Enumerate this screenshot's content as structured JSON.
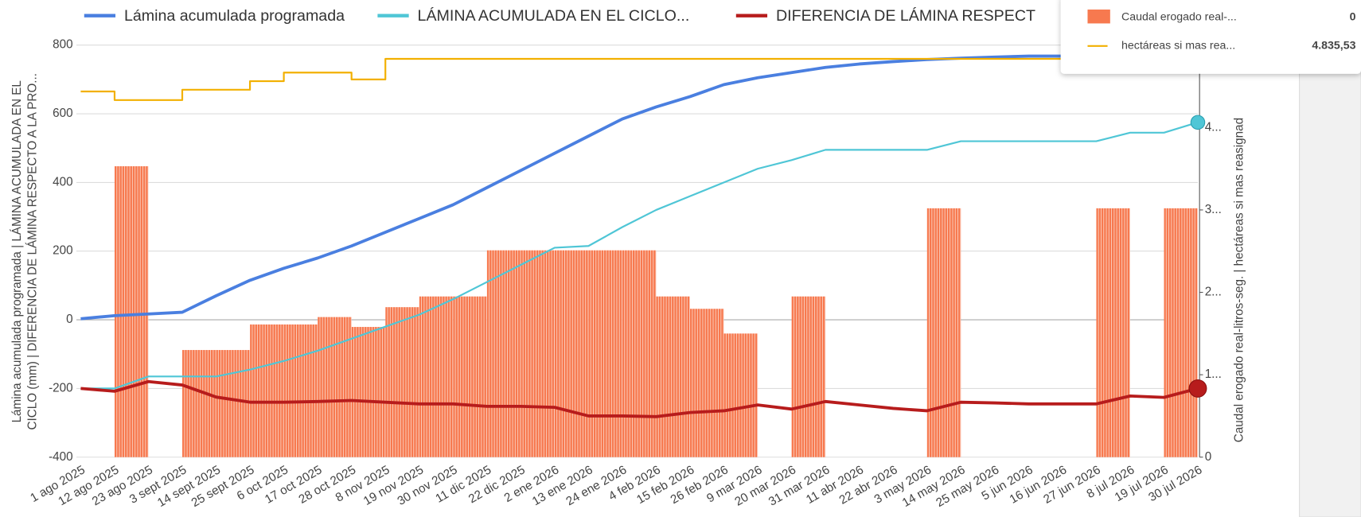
{
  "chart_data": {
    "type": "combo",
    "y_label": [
      "Lámina acumulada programada | LÁMINA ACUMULADA EN EL",
      "CICLO (mm) | DIFERENCIA DE LÁMINA RESPECTO A LA PRO..."
    ],
    "y2_label": "Caudal erogado real-litros-seg. | hectáreas si mas reasignad",
    "categories": [
      "1 ago 2025",
      "12 ago 2025",
      "23 ago 2025",
      "3 sept 2025",
      "14 sept 2025",
      "25 sept 2025",
      "6 oct 2025",
      "17 oct 2025",
      "28 oct 2025",
      "8 nov 2025",
      "19 nov 2025",
      "30 nov 2025",
      "11 dic 2025",
      "22 dic 2025",
      "2 ene 2026",
      "13 ene 2026",
      "24 ene 2026",
      "4 feb 2026",
      "15 feb 2026",
      "26 feb 2026",
      "9 mar 2026",
      "20 mar 2026",
      "31 mar 2026",
      "11 abr 2026",
      "22 abr 2026",
      "3 may 2026",
      "14 may 2026",
      "25 may 2026",
      "5 jun 2026",
      "16 jun 2026",
      "27 jun 2026",
      "8 jul 2026",
      "19 jul 2026",
      "30 jul 2026"
    ],
    "ylim": [
      -400,
      800
    ],
    "yticks": [
      -400,
      -200,
      0,
      200,
      400,
      600,
      800
    ],
    "y2lim": [
      0,
      5
    ],
    "y2ticks": [
      0,
      {
        "value": 1,
        "label": "1..."
      },
      {
        "value": 2,
        "label": "2..."
      },
      {
        "value": 3,
        "label": "3..."
      },
      {
        "value": 4,
        "label": "4..."
      }
    ],
    "grid": true,
    "series": [
      {
        "name": "Lámina acumulada programada",
        "kind": "line",
        "color": "#4a7fe0",
        "values": [
          3,
          12,
          17,
          22,
          70,
          115,
          150,
          180,
          215,
          255,
          295,
          335,
          385,
          435,
          485,
          535,
          585,
          620,
          650,
          685,
          705,
          720,
          735,
          745,
          752,
          758,
          762,
          765,
          768,
          768,
          768,
          768,
          770,
          770
        ]
      },
      {
        "name": "LÁMINA ACUMULADA EN EL CICLO...",
        "kind": "line",
        "color": "#4fc6d6",
        "end_marker": true,
        "values": [
          -200,
          -200,
          -165,
          -165,
          -165,
          -145,
          -120,
          -90,
          -55,
          -20,
          15,
          60,
          110,
          160,
          210,
          215,
          270,
          320,
          360,
          400,
          440,
          465,
          495,
          495,
          495,
          495,
          520,
          520,
          520,
          520,
          520,
          545,
          545,
          575
        ]
      },
      {
        "name": "DIFERENCIA DE LÁMINA RESPECT",
        "kind": "line",
        "color": "#b71c1c",
        "end_marker": true,
        "values": [
          -200,
          -208,
          -180,
          -190,
          -225,
          -240,
          -240,
          -238,
          -235,
          -240,
          -245,
          -245,
          -252,
          -252,
          -255,
          -280,
          -280,
          -282,
          -270,
          -265,
          -248,
          -260,
          -238,
          -248,
          -258,
          -265,
          -240,
          -242,
          -245,
          -245,
          -245,
          -222,
          -226,
          -200
        ]
      },
      {
        "name": "hectáreas si mas rea...",
        "kind": "step",
        "color": "#f2b000",
        "values": [
          665,
          640,
          640,
          670,
          670,
          695,
          720,
          720,
          700,
          760,
          760,
          760,
          760,
          760,
          760,
          760,
          760,
          760,
          760,
          760,
          760,
          760,
          760,
          760,
          760,
          760,
          760,
          760,
          760,
          760,
          760,
          760,
          760,
          760
        ]
      },
      {
        "name": "Caudal erogado real-...",
        "kind": "bar",
        "axis": "y2",
        "color": "#f7794f",
        "values": [
          0,
          3.53,
          0,
          1.3,
          1.3,
          1.61,
          1.61,
          1.7,
          1.58,
          1.82,
          1.95,
          1.95,
          2.51,
          2.51,
          2.51,
          2.51,
          2.51,
          1.95,
          1.8,
          1.5,
          0,
          1.95,
          0,
          0,
          0,
          3.02,
          0,
          0,
          0,
          0,
          3.02,
          0,
          3.02,
          0
        ]
      }
    ],
    "tooltip": "4.835,53"
  }
}
